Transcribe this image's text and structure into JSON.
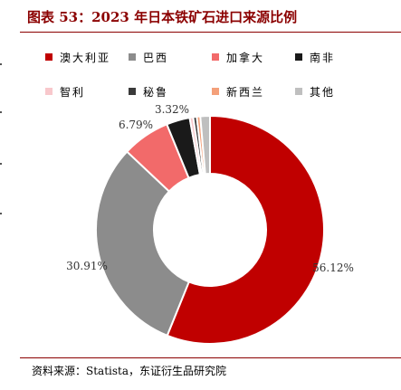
{
  "figure": {
    "title": "图表 53：2023 年日本铁矿石进口来源比例",
    "source": "资料来源：Statista，东证衍生品研究院"
  },
  "colors": {
    "accent": "#8b0000",
    "australia": "#c00000",
    "brazil": "#8c8c8c",
    "canada": "#f26a6a",
    "south_africa": "#1a1a1a",
    "chile": "#f8c8cc",
    "peru": "#3a3a3a",
    "new_zealand": "#f4a07a",
    "other": "#bfbfbf"
  },
  "chart_data": {
    "type": "pie",
    "donut": true,
    "title": "图表 53：2023 年日本铁矿石进口来源比例",
    "unit": "%",
    "legend_position": "top",
    "legend_columns": 4,
    "slices": [
      {
        "name": "澳大利亚",
        "value": 56.12,
        "label": "56.12%",
        "color": "#c00000"
      },
      {
        "name": "巴西",
        "value": 30.91,
        "label": "30.91%",
        "color": "#8c8c8c"
      },
      {
        "name": "加拿大",
        "value": 6.79,
        "label": "6.79%",
        "color": "#f26a6a"
      },
      {
        "name": "南非",
        "value": 3.32,
        "label": "3.32%",
        "color": "#1a1a1a"
      },
      {
        "name": "智利",
        "value": 0.5,
        "label": "",
        "color": "#f8c8cc"
      },
      {
        "name": "秘鲁",
        "value": 0.5,
        "label": "",
        "color": "#3a3a3a"
      },
      {
        "name": "新西兰",
        "value": 0.5,
        "label": "",
        "color": "#f4a07a"
      },
      {
        "name": "其他",
        "value": 1.36,
        "label": "",
        "color": "#bfbfbf"
      }
    ]
  }
}
